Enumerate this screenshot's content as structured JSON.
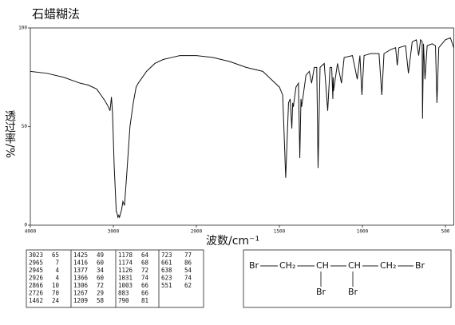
{
  "chart_data": {
    "type": "line",
    "title": "石蜡糊法",
    "y_label": "透过率/%",
    "x_label": "波数/cm⁻¹",
    "color": "#111111",
    "xlim": [
      4000,
      450
    ],
    "ylim": [
      0,
      100
    ],
    "xticks": [
      4000,
      3000,
      2000,
      1500,
      1000,
      500
    ],
    "yticks": [
      0,
      50,
      100
    ],
    "x": [
      4000,
      3800,
      3600,
      3400,
      3300,
      3200,
      3100,
      3060,
      3040,
      3023,
      3010,
      2990,
      2965,
      2955,
      2945,
      2935,
      2926,
      2900,
      2885,
      2866,
      2840,
      2800,
      2760,
      2726,
      2700,
      2600,
      2500,
      2400,
      2300,
      2200,
      2100,
      2000,
      1900,
      1800,
      1700,
      1600,
      1550,
      1500,
      1480,
      1462,
      1445,
      1435,
      1425,
      1420,
      1416,
      1400,
      1385,
      1377,
      1370,
      1366,
      1340,
      1320,
      1306,
      1290,
      1275,
      1267,
      1255,
      1230,
      1209,
      1195,
      1185,
      1178,
      1176,
      1174,
      1150,
      1126,
      1110,
      1060,
      1031,
      1015,
      1003,
      990,
      950,
      900,
      883,
      870,
      830,
      800,
      790,
      780,
      740,
      723,
      700,
      675,
      661,
      650,
      640,
      638,
      632,
      623,
      610,
      580,
      560,
      551,
      540,
      500,
      470,
      450
    ],
    "values": [
      78,
      77,
      75,
      72,
      71,
      69,
      63,
      60,
      58,
      65,
      57,
      30,
      7,
      6,
      4,
      5,
      4,
      8,
      12,
      10,
      25,
      50,
      62,
      70,
      72,
      78,
      82,
      84,
      85,
      86,
      86,
      86,
      85,
      83,
      80,
      78,
      74,
      70,
      66,
      24,
      62,
      64,
      49,
      62,
      60,
      70,
      72,
      34,
      64,
      60,
      76,
      78,
      72,
      80,
      80,
      29,
      80,
      82,
      58,
      80,
      80,
      64,
      75,
      68,
      82,
      72,
      85,
      86,
      74,
      86,
      66,
      86,
      87,
      87,
      66,
      87,
      89,
      90,
      81,
      90,
      91,
      77,
      93,
      94,
      86,
      94,
      93,
      54,
      92,
      74,
      91,
      92,
      91,
      62,
      90,
      94,
      95,
      90
    ]
  },
  "peak_table": {
    "groups": [
      [
        [
          3023,
          65
        ],
        [
          2965,
          7
        ],
        [
          2945,
          4
        ],
        [
          2926,
          4
        ],
        [
          2866,
          10
        ],
        [
          2726,
          70
        ],
        [
          1462,
          24
        ]
      ],
      [
        [
          1425,
          49
        ],
        [
          1416,
          60
        ],
        [
          1377,
          34
        ],
        [
          1366,
          60
        ],
        [
          1306,
          72
        ],
        [
          1267,
          29
        ],
        [
          1209,
          58
        ]
      ],
      [
        [
          1178,
          64
        ],
        [
          1174,
          68
        ],
        [
          1126,
          72
        ],
        [
          1031,
          74
        ],
        [
          1003,
          66
        ],
        [
          883,
          66
        ],
        [
          790,
          81
        ]
      ],
      [
        [
          723,
          77
        ],
        [
          661,
          86
        ],
        [
          638,
          54
        ],
        [
          623,
          74
        ],
        [
          551,
          62
        ]
      ]
    ]
  },
  "structure": {
    "chain": [
      "Br",
      "CH₂",
      "CH",
      "CH",
      "CH₂",
      "Br"
    ],
    "substituents": [
      "Br",
      "Br"
    ]
  }
}
